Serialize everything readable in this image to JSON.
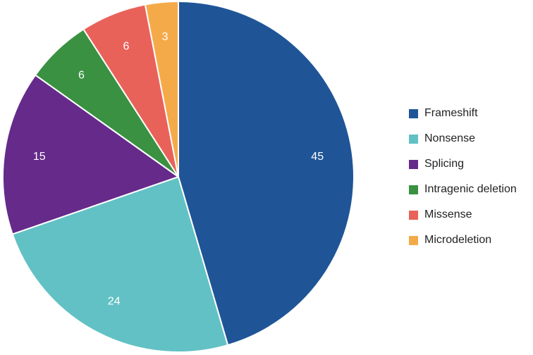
{
  "chart_data": {
    "type": "pie",
    "categories": [
      "Frameshift",
      "Nonsense",
      "Splicing",
      "Intragenic deletion",
      "Missense",
      "Microdeletion"
    ],
    "values": [
      45,
      24,
      15,
      6,
      6,
      3
    ],
    "colors": [
      "#1f5597",
      "#62c1c4",
      "#652a8a",
      "#3a9141",
      "#e9625a",
      "#f5aa4a"
    ],
    "start_angle_deg": 0,
    "direction": "clockwise",
    "slice_label_color": "#ffffff",
    "slice_border_color": "#ffffff",
    "legend": {
      "placement": "right"
    }
  }
}
